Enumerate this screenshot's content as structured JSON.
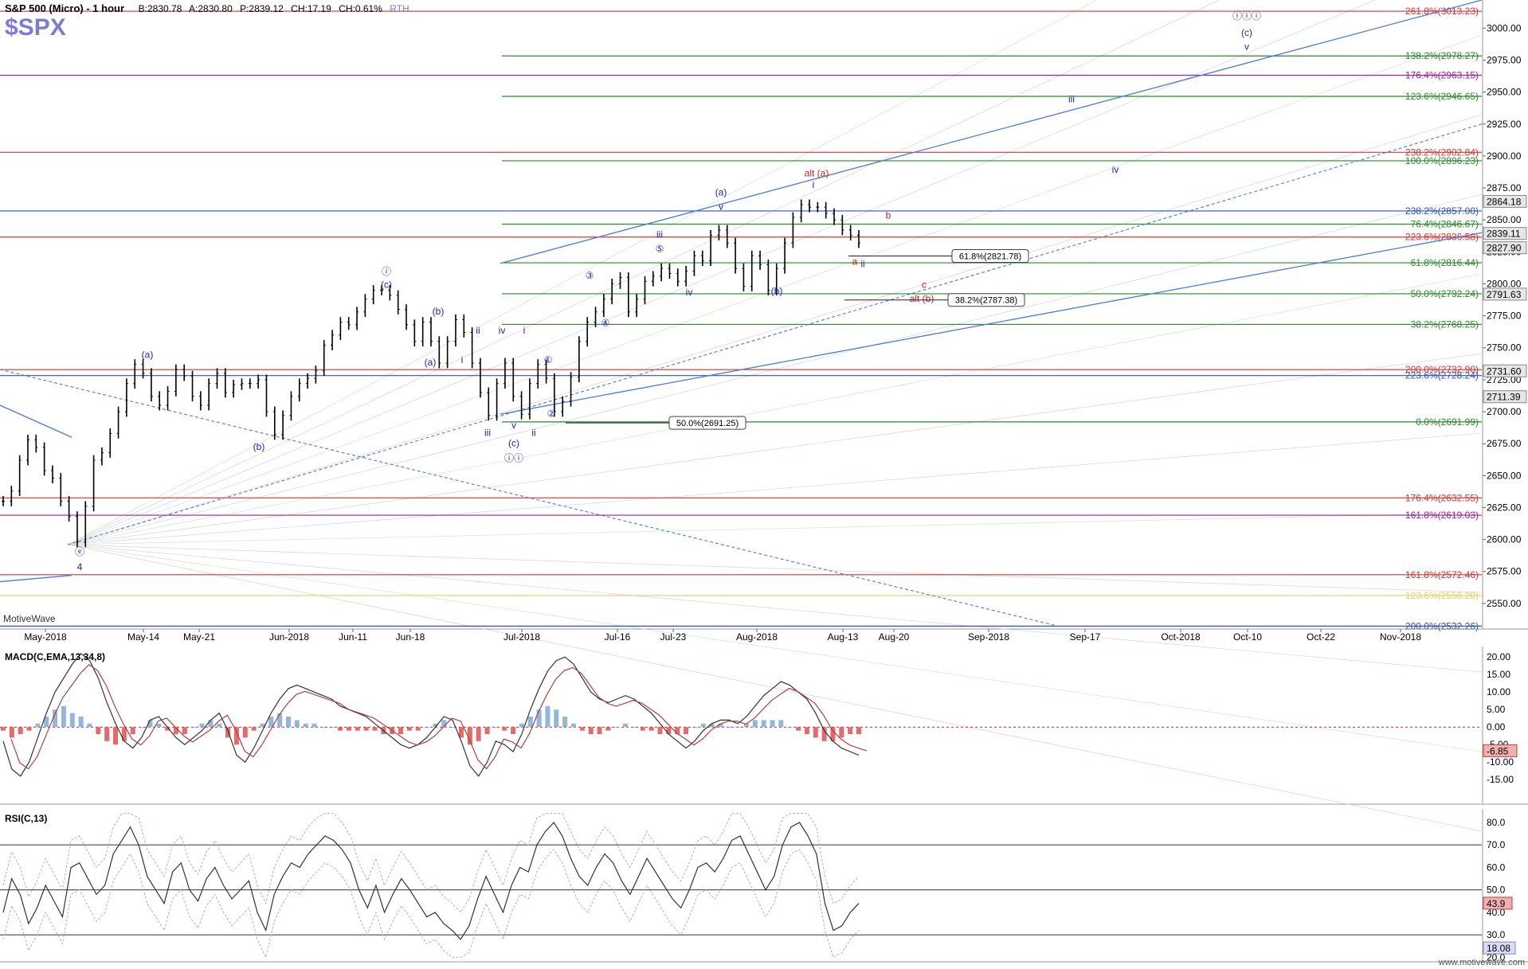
{
  "header": {
    "title": "S&P 500 (Micro) - 1 hour",
    "bid": "B:2830.78",
    "ask": "A:2830.80",
    "price": "P:2839.12",
    "change": "CH:17.19",
    "change_pct": "CH:0.61%",
    "session": "RTH",
    "symbol": "$SPX",
    "watermark": "MotiveWave",
    "footer": "www.motivewave.com"
  },
  "colors": {
    "bars": "#000000",
    "red_fib": "#e03030",
    "green_fib": "#2a8a2a",
    "purple_fib": "#a020a0",
    "blue_fib": "#3050c0",
    "yellow_fib": "#e8d060",
    "trend": "#4a7ae0",
    "label_blue": "#2020c0",
    "label_red": "#d02020",
    "macd_pos": "#7eaad8",
    "macd_neg": "#e05050"
  },
  "chart_data": [
    {
      "type": "line",
      "title": "S&P 500 (Micro) - 1 hour",
      "ylim": [
        2530,
        3022
      ],
      "x_ticks": [
        "May-2018",
        "May-14",
        "May-21",
        "Jun-2018",
        "Jun-11",
        "Jun-18",
        "Jul-2018",
        "Jul-16",
        "Jul-23",
        "Aug-2018",
        "Aug-13",
        "Aug-20",
        "Sep-2018",
        "Sep-17",
        "Oct-2018",
        "Oct-10",
        "Oct-22",
        "Nov-2018"
      ],
      "y_ticks": [
        2550,
        2575,
        2600,
        2625,
        2650,
        2675,
        2700,
        2725,
        2750,
        2775,
        2800,
        2825,
        2850,
        2875,
        2900,
        2925,
        2950,
        2975,
        3000
      ],
      "series": [
        {
          "values": [
            2630,
            2638,
            2662,
            2678,
            2672,
            2654,
            2648,
            2630,
            2618,
            2598,
            2626,
            2662,
            2668,
            2683,
            2700,
            2722,
            2737,
            2730,
            2712,
            2705,
            2716,
            2733,
            2728,
            2712,
            2705,
            2722,
            2730,
            2715,
            2721,
            2722,
            2722,
            2725,
            2700,
            2682,
            2697,
            2712,
            2722,
            2726,
            2732,
            2752,
            2760,
            2770,
            2768,
            2778,
            2788,
            2795,
            2795,
            2791,
            2780,
            2768,
            2755,
            2770,
            2755,
            2738,
            2755,
            2772,
            2762,
            2738,
            2715,
            2697,
            2722,
            2738,
            2712,
            2698,
            2722,
            2737,
            2726,
            2700,
            2708,
            2727,
            2755,
            2770,
            2778,
            2788,
            2800,
            2805,
            2778,
            2788,
            2802,
            2806,
            2812,
            2808,
            2802,
            2810,
            2822,
            2818,
            2838,
            2842,
            2832,
            2812,
            2798,
            2822,
            2815,
            2795,
            2812,
            2832,
            2852,
            2862,
            2860,
            2860,
            2855,
            2850,
            2842,
            2838,
            2832
          ]
        }
      ],
      "fib_levels": [
        {
          "label": "261.8%(3013.23)",
          "value": 3013.23,
          "color": "red"
        },
        {
          "label": "138.2%(2978.27)",
          "value": 2978.27,
          "color": "green"
        },
        {
          "label": "176.4%(2963.15)",
          "value": 2963.15,
          "color": "purple"
        },
        {
          "label": "123.6%(2946.65)",
          "value": 2946.65,
          "color": "green"
        },
        {
          "label": "238.2%(2902.84)",
          "value": 2902.84,
          "color": "red"
        },
        {
          "label": "100.0%(2896.23)",
          "value": 2896.23,
          "color": "green"
        },
        {
          "label": "238.2%(2857.00)",
          "value": 2857.0,
          "color": "blue"
        },
        {
          "label": "76.4%(2846.67)",
          "value": 2846.67,
          "color": "green"
        },
        {
          "label": "223.6%(2836.58)",
          "value": 2836.58,
          "color": "red"
        },
        {
          "label": "61.8%(2816.44)",
          "value": 2816.44,
          "color": "green"
        },
        {
          "label": "50.0%(2792.24)",
          "value": 2792.24,
          "color": "green"
        },
        {
          "label": "38.2%(2768.25)",
          "value": 2768.25,
          "color": "green"
        },
        {
          "label": "200.0%(2732.90)",
          "value": 2732.9,
          "color": "red"
        },
        {
          "label": "223.6%(2728.24)",
          "value": 2728.24,
          "color": "blue"
        },
        {
          "label": "0.0%(2691.99)",
          "value": 2691.99,
          "color": "green"
        },
        {
          "label": "176.4%(2632.55)",
          "value": 2632.55,
          "color": "red"
        },
        {
          "label": "161.8%(2619.03)",
          "value": 2619.03,
          "color": "purple"
        },
        {
          "label": "161.8%(2572.46)",
          "value": 2572.46,
          "color": "red"
        },
        {
          "label": "123.6%(2556.20)",
          "value": 2556.2,
          "color": "yellow"
        },
        {
          "label": "200.0%(2532.26)",
          "value": 2532.26,
          "color": "blue"
        }
      ],
      "boxed_labels": [
        {
          "label": "61.8%(2821.78)",
          "value": 2821.78
        },
        {
          "label": "38.2%(2787.38)",
          "value": 2787.38
        },
        {
          "label": "50.0%(2691.25)",
          "value": 2691.25
        }
      ],
      "price_tags": [
        {
          "label": "2864.18",
          "value": 2864.18
        },
        {
          "label": "2839.11",
          "value": 2839.11
        },
        {
          "label": "2827.90",
          "value": 2827.9
        },
        {
          "label": "2791.63",
          "value": 2791.63
        },
        {
          "label": "2731.60",
          "value": 2731.6
        },
        {
          "label": "2711.39",
          "value": 2711.39
        }
      ],
      "wave_labels": [
        {
          "t": "(a)",
          "value": 2742,
          "c": "blue"
        },
        {
          "t": "(b)",
          "value": 2670,
          "c": "blue"
        },
        {
          "t": "(c)",
          "value": 2797,
          "c": "blue"
        },
        {
          "t": "ⓘ",
          "value": 2807,
          "c": "blue"
        },
        {
          "t": "(b)",
          "value": 2776,
          "c": "blue"
        },
        {
          "t": "(a)",
          "value": 2736,
          "c": "blue"
        },
        {
          "t": "ii",
          "value": 2761,
          "c": "blue"
        },
        {
          "t": "i",
          "value": 2738,
          "c": "blue"
        },
        {
          "t": "iv",
          "value": 2761,
          "c": "blue"
        },
        {
          "t": "i",
          "value": 2761,
          "c": "blue"
        },
        {
          "t": "①",
          "value": 2738,
          "c": "blue"
        },
        {
          "t": "iii",
          "value": 2681,
          "c": "blue"
        },
        {
          "t": "v",
          "value": 2687,
          "c": "blue"
        },
        {
          "t": "ii",
          "value": 2681,
          "c": "blue"
        },
        {
          "t": "②",
          "value": 2696,
          "c": "blue"
        },
        {
          "t": "(c)",
          "value": 2673,
          "c": "blue"
        },
        {
          "t": "ⓘⓘ",
          "value": 2661,
          "c": "blue"
        },
        {
          "t": "ⓔ",
          "value": 2588,
          "c": "blue"
        },
        {
          "t": "4",
          "value": 2576,
          "c": "blue"
        },
        {
          "t": "③",
          "value": 2804,
          "c": "blue"
        },
        {
          "t": "④",
          "value": 2767,
          "c": "blue"
        },
        {
          "t": "iii",
          "value": 2836,
          "c": "blue"
        },
        {
          "t": "⑤",
          "value": 2825,
          "c": "blue"
        },
        {
          "t": "iv",
          "value": 2791,
          "c": "blue"
        },
        {
          "t": "(a)",
          "value": 2869,
          "c": "blue"
        },
        {
          "t": "v",
          "value": 2858,
          "c": "blue"
        },
        {
          "t": "(b)",
          "value": 2792,
          "c": "blue"
        },
        {
          "t": "i",
          "value": 2875,
          "c": "blue"
        },
        {
          "t": "alt (a)",
          "value": 2884,
          "c": "red"
        },
        {
          "t": "b",
          "value": 2851,
          "c": "red"
        },
        {
          "t": "a",
          "value": 2815,
          "c": "red"
        },
        {
          "t": "ii",
          "value": 2813,
          "c": "blue"
        },
        {
          "t": "c",
          "value": 2797,
          "c": "red"
        },
        {
          "t": "alt (b)",
          "value": 2786,
          "c": "red"
        },
        {
          "t": "iii",
          "value": 2942,
          "c": "blue"
        },
        {
          "t": "iv",
          "value": 2887,
          "c": "blue"
        },
        {
          "t": "ⓘⓘⓘ",
          "value": 3007,
          "c": "blue"
        },
        {
          "t": "(c)",
          "value": 2994,
          "c": "blue"
        },
        {
          "t": "v",
          "value": 2983,
          "c": "blue"
        }
      ]
    },
    {
      "type": "bar",
      "title": "MACD(C,EMA,13,34,8)",
      "ylim": [
        -22,
        23
      ],
      "y_ticks": [
        20.0,
        15.0,
        10.0,
        5.0,
        0.0,
        -5.0,
        -10.0,
        -15.0
      ],
      "current_label": "-6.85",
      "macd": [
        -4,
        -12,
        -14,
        -10,
        -3,
        4,
        10,
        14,
        18,
        21,
        19,
        14,
        7,
        1,
        -4,
        -6,
        -3,
        2,
        3,
        0,
        -3,
        -5,
        -3,
        -1,
        2,
        4,
        -1,
        -8,
        -10,
        -6,
        -1,
        4,
        8,
        11,
        12,
        11,
        10,
        9,
        8,
        6,
        5,
        4,
        3,
        1,
        -1,
        -3,
        -5,
        -6,
        -5,
        -3,
        0,
        3,
        2,
        -4,
        -11,
        -14,
        -10,
        -4,
        -5,
        -7,
        -2,
        5,
        11,
        16,
        19,
        20,
        18,
        14,
        10,
        8,
        7,
        8,
        9,
        8,
        6,
        4,
        1,
        -2,
        -4,
        -6,
        -4,
        -1,
        1,
        2,
        2,
        1,
        3,
        6,
        9,
        11,
        13,
        12,
        10,
        8,
        4,
        -1,
        -4,
        -6,
        -7,
        -8
      ],
      "hist": [
        -1,
        -3,
        -2,
        -1,
        1,
        3,
        5,
        6,
        4,
        3,
        1,
        -2,
        -4,
        -5,
        -4,
        -2,
        0,
        2,
        1,
        -1,
        -2,
        -2,
        0,
        1,
        2,
        1,
        -3,
        -5,
        -3,
        -1,
        1,
        3,
        4,
        3,
        2,
        1,
        1,
        0,
        0,
        -1,
        -1,
        -1,
        -1,
        -1,
        -2,
        -2,
        -2,
        -1,
        -1,
        0,
        1,
        2,
        0,
        -3,
        -5,
        -4,
        -2,
        0,
        -1,
        -2,
        1,
        3,
        5,
        6,
        5,
        3,
        1,
        -1,
        -2,
        -2,
        -1,
        0,
        1,
        0,
        -1,
        -1,
        -2,
        -2,
        -2,
        -2,
        0,
        1,
        1,
        1,
        0,
        0,
        1,
        2,
        2,
        2,
        2,
        0,
        -1,
        -2,
        -3,
        -4,
        -4,
        -3,
        -2,
        -2
      ]
    },
    {
      "type": "line",
      "title": "RSI(C,13)",
      "ylim": [
        18,
        86
      ],
      "y_ticks": [
        80.0,
        70.0,
        60.0,
        50.0,
        40.0,
        30.0,
        20.0
      ],
      "levels": [
        70,
        50,
        30
      ],
      "current_label": "43.9",
      "secondary_label": "18.08",
      "rsi": [
        40,
        55,
        48,
        35,
        42,
        52,
        45,
        38,
        60,
        62,
        55,
        48,
        52,
        66,
        72,
        78,
        70,
        56,
        50,
        44,
        58,
        62,
        50,
        45,
        55,
        60,
        52,
        46,
        50,
        54,
        40,
        32,
        48,
        56,
        62,
        60,
        66,
        70,
        74,
        72,
        68,
        62,
        50,
        42,
        52,
        40,
        48,
        55,
        50,
        44,
        38,
        40,
        35,
        32,
        28,
        34,
        46,
        56,
        48,
        40,
        52,
        60,
        58,
        70,
        76,
        80,
        74,
        64,
        56,
        52,
        60,
        66,
        62,
        54,
        48,
        56,
        64,
        58,
        52,
        46,
        42,
        50,
        60,
        62,
        58,
        64,
        72,
        74,
        66,
        58,
        50,
        56,
        70,
        78,
        80,
        74,
        66,
        44,
        32,
        34,
        40,
        44
      ]
    }
  ]
}
